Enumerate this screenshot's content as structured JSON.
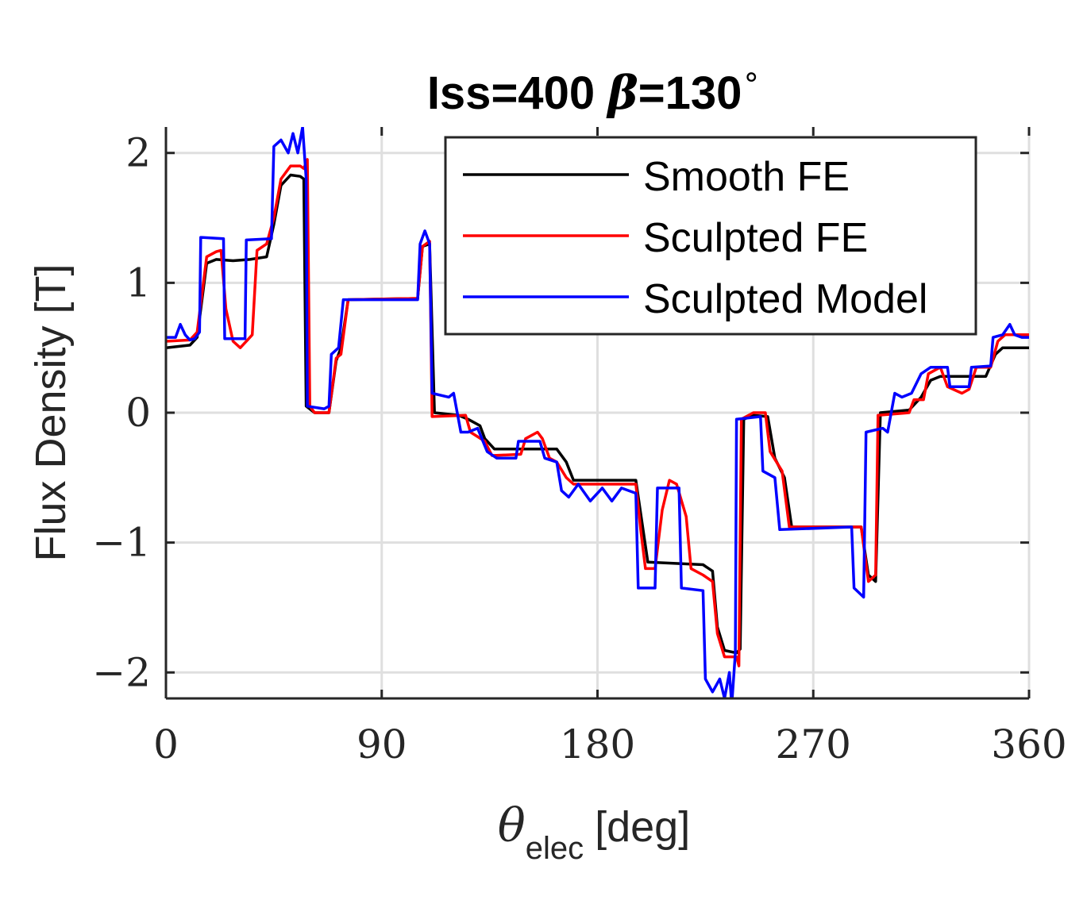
{
  "chart_data": {
    "type": "line",
    "title": {
      "prefix": "Iss=400 ",
      "symbol": "β",
      "suffix": "=130",
      "degree": "∘"
    },
    "xlabel": {
      "symbol": "θ",
      "subscript": "elec",
      "unit": "[deg]"
    },
    "ylabel": "Flux Density [T]",
    "xlim": [
      0,
      360
    ],
    "ylim": [
      -2.2,
      2.2
    ],
    "xticks": [
      0,
      90,
      180,
      270,
      360
    ],
    "xtick_labels": [
      "0",
      "90",
      "180",
      "270",
      "360"
    ],
    "yticks": [
      2,
      1,
      0,
      -1,
      -2
    ],
    "ytick_labels": [
      "2",
      "1",
      "0",
      "−1",
      "−2"
    ],
    "grid": true,
    "legend_position": "top-right",
    "series": [
      {
        "name": "Smooth FE",
        "color": "#000000",
        "points": [
          [
            0,
            0.5
          ],
          [
            10,
            0.52
          ],
          [
            13,
            0.58
          ],
          [
            17,
            1.15
          ],
          [
            21,
            1.18
          ],
          [
            28,
            1.17
          ],
          [
            35,
            1.18
          ],
          [
            42,
            1.2
          ],
          [
            45,
            1.45
          ],
          [
            48,
            1.75
          ],
          [
            52,
            1.83
          ],
          [
            56,
            1.82
          ],
          [
            57.5,
            1.8
          ],
          [
            58.5,
            0.05
          ],
          [
            62,
            0.0
          ],
          [
            68,
            0.0
          ],
          [
            71,
            0.4
          ],
          [
            73,
            0.5
          ],
          [
            76,
            0.87
          ],
          [
            105,
            0.88
          ],
          [
            107,
            1.28
          ],
          [
            110,
            1.3
          ],
          [
            112,
            0.0
          ],
          [
            122,
            -0.02
          ],
          [
            126,
            -0.05
          ],
          [
            131,
            -0.1
          ],
          [
            133,
            -0.2
          ],
          [
            137,
            -0.28
          ],
          [
            163,
            -0.28
          ],
          [
            167,
            -0.38
          ],
          [
            170,
            -0.52
          ],
          [
            196,
            -0.52
          ],
          [
            199,
            -0.9
          ],
          [
            201,
            -1.15
          ],
          [
            224,
            -1.17
          ],
          [
            228,
            -1.22
          ],
          [
            230,
            -1.65
          ],
          [
            233,
            -1.83
          ],
          [
            238,
            -1.85
          ],
          [
            239.5,
            -1.82
          ],
          [
            241,
            -0.05
          ],
          [
            245,
            -0.02
          ],
          [
            251,
            -0.03
          ],
          [
            254,
            -0.35
          ],
          [
            258,
            -0.5
          ],
          [
            261,
            -0.88
          ],
          [
            290,
            -0.88
          ],
          [
            293,
            -1.25
          ],
          [
            296,
            -1.3
          ],
          [
            298,
            0.0
          ],
          [
            310,
            0.02
          ],
          [
            315,
            0.12
          ],
          [
            319,
            0.25
          ],
          [
            323,
            0.28
          ],
          [
            342,
            0.28
          ],
          [
            346,
            0.45
          ],
          [
            349,
            0.5
          ],
          [
            360,
            0.5
          ]
        ]
      },
      {
        "name": "Sculpted FE",
        "color": "#ff0000",
        "points": [
          [
            0,
            0.55
          ],
          [
            10,
            0.56
          ],
          [
            13,
            0.62
          ],
          [
            17,
            1.2
          ],
          [
            21,
            1.24
          ],
          [
            23,
            1.25
          ],
          [
            25,
            0.8
          ],
          [
            28,
            0.55
          ],
          [
            31,
            0.5
          ],
          [
            34,
            0.56
          ],
          [
            36,
            0.6
          ],
          [
            38,
            1.25
          ],
          [
            42,
            1.3
          ],
          [
            45,
            1.5
          ],
          [
            48,
            1.8
          ],
          [
            52,
            1.9
          ],
          [
            56,
            1.9
          ],
          [
            57.5,
            1.88
          ],
          [
            59,
            1.95
          ],
          [
            60,
            0.05
          ],
          [
            62,
            0.0
          ],
          [
            68,
            0.0
          ],
          [
            71,
            0.42
          ],
          [
            73,
            0.45
          ],
          [
            76,
            0.87
          ],
          [
            105,
            0.88
          ],
          [
            107,
            1.28
          ],
          [
            110,
            1.32
          ],
          [
            111,
            -0.03
          ],
          [
            125,
            -0.02
          ],
          [
            127,
            -0.15
          ],
          [
            133,
            -0.22
          ],
          [
            136,
            -0.33
          ],
          [
            148,
            -0.32
          ],
          [
            150,
            -0.2
          ],
          [
            155,
            -0.15
          ],
          [
            157,
            -0.2
          ],
          [
            160,
            -0.35
          ],
          [
            163,
            -0.38
          ],
          [
            167,
            -0.5
          ],
          [
            170,
            -0.55
          ],
          [
            196,
            -0.55
          ],
          [
            198,
            -0.9
          ],
          [
            200,
            -1.2
          ],
          [
            204,
            -1.2
          ],
          [
            207,
            -0.75
          ],
          [
            210,
            -0.52
          ],
          [
            213,
            -0.55
          ],
          [
            217,
            -0.8
          ],
          [
            219,
            -1.2
          ],
          [
            224,
            -1.25
          ],
          [
            228,
            -1.3
          ],
          [
            230,
            -1.7
          ],
          [
            233,
            -1.88
          ],
          [
            238,
            -1.88
          ],
          [
            239,
            -1.95
          ],
          [
            240,
            -0.05
          ],
          [
            245,
            -0.0
          ],
          [
            250,
            0.0
          ],
          [
            252,
            -0.3
          ],
          [
            257,
            -0.45
          ],
          [
            260,
            -0.88
          ],
          [
            290,
            -0.88
          ],
          [
            293,
            -1.3
          ],
          [
            296,
            -1.25
          ],
          [
            297,
            -0.02
          ],
          [
            310,
            -0.0
          ],
          [
            312,
            0.1
          ],
          [
            316,
            0.1
          ],
          [
            318,
            0.3
          ],
          [
            323,
            0.35
          ],
          [
            326,
            0.2
          ],
          [
            332,
            0.15
          ],
          [
            335,
            0.18
          ],
          [
            338,
            0.35
          ],
          [
            344,
            0.35
          ],
          [
            347,
            0.55
          ],
          [
            350,
            0.6
          ],
          [
            360,
            0.6
          ]
        ]
      },
      {
        "name": "Sculpted Model",
        "color": "#0000ff",
        "points": [
          [
            0,
            0.58
          ],
          [
            4,
            0.58
          ],
          [
            6,
            0.68
          ],
          [
            8,
            0.6
          ],
          [
            10,
            0.56
          ],
          [
            12,
            0.57
          ],
          [
            14,
            0.62
          ],
          [
            14.5,
            1.35
          ],
          [
            24,
            1.34
          ],
          [
            24.5,
            0.57
          ],
          [
            33,
            0.57
          ],
          [
            33.5,
            1.33
          ],
          [
            44,
            1.34
          ],
          [
            45,
            2.05
          ],
          [
            48,
            2.1
          ],
          [
            51,
            2.0
          ],
          [
            53,
            2.15
          ],
          [
            55,
            2.0
          ],
          [
            57,
            2.2
          ],
          [
            58.5,
            1.8
          ],
          [
            59,
            0.05
          ],
          [
            66,
            0.03
          ],
          [
            68,
            0.05
          ],
          [
            69,
            0.45
          ],
          [
            72,
            0.5
          ],
          [
            74,
            0.87
          ],
          [
            105,
            0.87
          ],
          [
            106,
            1.3
          ],
          [
            108,
            1.4
          ],
          [
            110,
            1.3
          ],
          [
            111,
            0.15
          ],
          [
            118,
            0.12
          ],
          [
            120,
            0.15
          ],
          [
            123,
            -0.15
          ],
          [
            126,
            -0.15
          ],
          [
            130,
            -0.12
          ],
          [
            134,
            -0.3
          ],
          [
            138,
            -0.35
          ],
          [
            146,
            -0.35
          ],
          [
            147,
            -0.22
          ],
          [
            156,
            -0.22
          ],
          [
            158,
            -0.35
          ],
          [
            163,
            -0.38
          ],
          [
            165,
            -0.6
          ],
          [
            168,
            -0.65
          ],
          [
            172,
            -0.55
          ],
          [
            177,
            -0.68
          ],
          [
            182,
            -0.58
          ],
          [
            186,
            -0.68
          ],
          [
            190,
            -0.58
          ],
          [
            196,
            -0.62
          ],
          [
            197,
            -1.35
          ],
          [
            204,
            -1.35
          ],
          [
            205,
            -0.58
          ],
          [
            214,
            -0.58
          ],
          [
            215,
            -1.35
          ],
          [
            224,
            -1.37
          ],
          [
            225,
            -2.05
          ],
          [
            228,
            -2.15
          ],
          [
            231,
            -2.05
          ],
          [
            233,
            -2.2
          ],
          [
            235,
            -2.0
          ],
          [
            236,
            -2.25
          ],
          [
            237.5,
            -1.85
          ],
          [
            238,
            -0.05
          ],
          [
            248,
            -0.03
          ],
          [
            249,
            -0.45
          ],
          [
            254,
            -0.5
          ],
          [
            256,
            -0.9
          ],
          [
            286,
            -0.88
          ],
          [
            287,
            -1.35
          ],
          [
            291,
            -1.42
          ],
          [
            292,
            -0.15
          ],
          [
            299,
            -0.12
          ],
          [
            301,
            -0.15
          ],
          [
            304,
            0.15
          ],
          [
            307,
            0.12
          ],
          [
            311,
            0.15
          ],
          [
            315,
            0.3
          ],
          [
            319,
            0.35
          ],
          [
            326,
            0.35
          ],
          [
            327,
            0.2
          ],
          [
            335,
            0.2
          ],
          [
            336,
            0.35
          ],
          [
            344,
            0.36
          ],
          [
            345,
            0.58
          ],
          [
            349,
            0.6
          ],
          [
            352,
            0.68
          ],
          [
            354,
            0.6
          ],
          [
            357,
            0.58
          ],
          [
            360,
            0.58
          ]
        ]
      }
    ]
  }
}
